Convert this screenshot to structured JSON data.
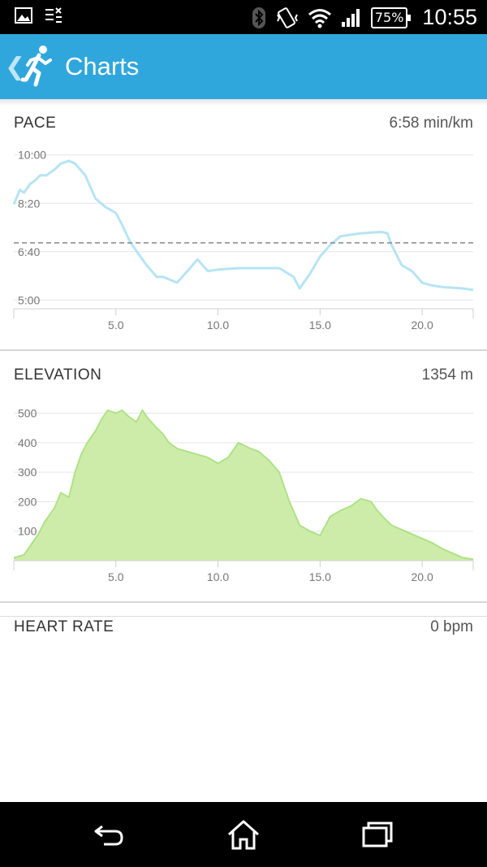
{
  "status_bar": {
    "battery": "75%",
    "time": "10:55",
    "icons": [
      "image-icon",
      "notification-list-icon",
      "bluetooth-icon",
      "vibrate-icon",
      "wifi-icon",
      "signal-icon",
      "battery-icon"
    ]
  },
  "action_bar": {
    "title": "Charts",
    "icons": [
      "back-chevron-icon",
      "runner-icon"
    ],
    "color": "#30a7dc"
  },
  "pace": {
    "title": "PACE",
    "value": "6:58 min/km"
  },
  "elevation": {
    "title": "ELEVATION",
    "value": "1354 m"
  },
  "heart_rate": {
    "title": "HEART RATE",
    "value": "0 bpm"
  },
  "nav_bar": {
    "icons": [
      "back-icon",
      "home-icon",
      "recents-icon"
    ]
  },
  "chart_data": [
    {
      "type": "line",
      "name": "pace",
      "color": "#b6e4f4",
      "reference_line": 6.97,
      "y_ticks": [
        "10:00",
        "8:20",
        "6:40",
        "5:00"
      ],
      "y_tick_values": [
        10.0,
        8.333,
        6.667,
        5.0
      ],
      "x_ticks": [
        "5.0",
        "10.0",
        "15.0",
        "20.0"
      ],
      "x_tick_values": [
        5,
        10,
        15,
        20
      ],
      "xlim": [
        0,
        22.5
      ],
      "ylim": [
        4.7,
        10.3
      ],
      "grid": true,
      "x": [
        0,
        0.3,
        0.5,
        0.8,
        1.0,
        1.3,
        1.6,
        2.0,
        2.3,
        2.7,
        3.0,
        3.5,
        4.0,
        4.5,
        5.0,
        5.3,
        5.7,
        6.0,
        6.5,
        7.0,
        7.3,
        8.0,
        8.5,
        9.0,
        9.5,
        10.0,
        11.0,
        12.0,
        13.0,
        13.7,
        14.0,
        14.5,
        15.0,
        15.5,
        16.0,
        17.0,
        18.0,
        18.3,
        18.5,
        19.0,
        19.5,
        20.0,
        20.5,
        21.0,
        22.0,
        22.5
      ],
      "y": [
        8.3,
        8.8,
        8.7,
        9.0,
        9.1,
        9.3,
        9.3,
        9.5,
        9.7,
        9.8,
        9.7,
        9.3,
        8.5,
        8.2,
        8.0,
        7.6,
        7.0,
        6.7,
        6.2,
        5.8,
        5.8,
        5.6,
        6.0,
        6.4,
        6.0,
        6.05,
        6.1,
        6.1,
        6.1,
        5.8,
        5.4,
        5.9,
        6.5,
        6.9,
        7.2,
        7.3,
        7.35,
        7.3,
        6.9,
        6.2,
        6.0,
        5.6,
        5.5,
        5.45,
        5.4,
        5.35
      ]
    },
    {
      "type": "area",
      "name": "elevation",
      "color": "#aee286",
      "fill": "#cdeca9",
      "y_ticks": [
        "500",
        "400",
        "300",
        "200",
        "100"
      ],
      "y_tick_values": [
        500,
        400,
        300,
        200,
        100
      ],
      "x_ticks": [
        "5.0",
        "10.0",
        "15.0",
        "20.0"
      ],
      "x_tick_values": [
        5,
        10,
        15,
        20
      ],
      "xlim": [
        0,
        22.5
      ],
      "ylim": [
        0,
        540
      ],
      "grid": true,
      "x": [
        0,
        0.5,
        0.8,
        1.2,
        1.5,
        2.0,
        2.3,
        2.7,
        3.0,
        3.3,
        3.6,
        4.0,
        4.3,
        4.6,
        5.0,
        5.3,
        5.6,
        6.0,
        6.3,
        6.6,
        7.0,
        7.3,
        7.6,
        8.0,
        8.5,
        9.0,
        9.5,
        10.0,
        10.5,
        11.0,
        11.3,
        11.6,
        12.0,
        12.5,
        13.0,
        13.5,
        14.0,
        14.5,
        15.0,
        15.5,
        16.0,
        16.5,
        17.0,
        17.5,
        17.8,
        18.2,
        18.5,
        19.0,
        19.5,
        20.0,
        20.5,
        21.0,
        21.5,
        22.0,
        22.5
      ],
      "y": [
        10,
        20,
        50,
        90,
        130,
        180,
        230,
        215,
        300,
        360,
        400,
        440,
        480,
        510,
        500,
        510,
        490,
        470,
        510,
        480,
        450,
        430,
        400,
        380,
        370,
        360,
        350,
        330,
        350,
        400,
        390,
        380,
        370,
        340,
        300,
        200,
        120,
        100,
        85,
        150,
        170,
        185,
        210,
        200,
        170,
        140,
        120,
        105,
        90,
        75,
        60,
        40,
        25,
        10,
        5
      ]
    }
  ]
}
